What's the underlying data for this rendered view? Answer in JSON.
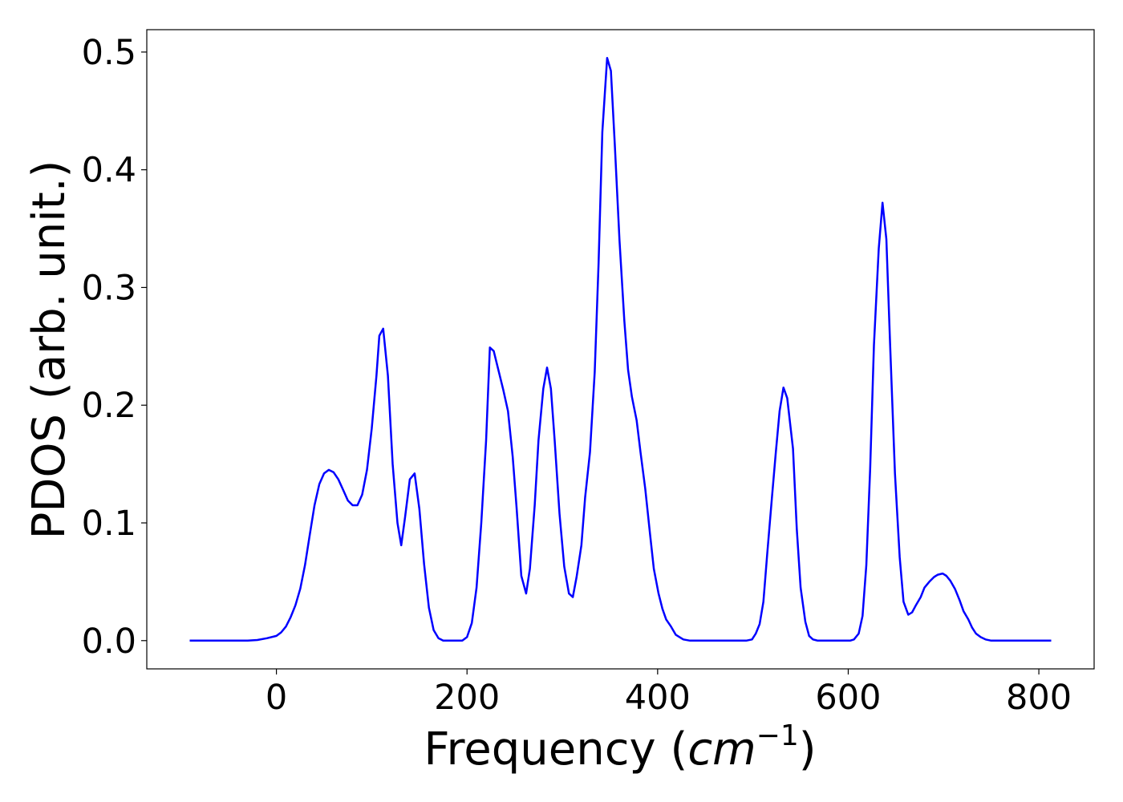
{
  "chart_data": {
    "type": "line",
    "xlabel": {
      "text": "Frequency (",
      "math": "cm",
      "sup": "−1",
      "close": ")"
    },
    "ylabel": "PDOS (arb. unit.)",
    "xlim": [
      -136,
      858
    ],
    "ylim": [
      -0.024,
      0.519
    ],
    "xticks": [
      0,
      200,
      400,
      600,
      800
    ],
    "yticks": [
      {
        "value": 0,
        "label": "0.0"
      },
      {
        "value": 0.1,
        "label": "0.1"
      },
      {
        "value": 0.2,
        "label": "0.2"
      },
      {
        "value": 0.3,
        "label": "0.3"
      },
      {
        "value": 0.4,
        "label": "0.4"
      },
      {
        "value": 0.5,
        "label": "0.5"
      }
    ],
    "grid": false,
    "x": [
      -91,
      -30,
      -20,
      -10,
      0,
      5,
      10,
      15,
      20,
      25,
      30,
      35,
      40,
      45,
      50,
      55,
      60,
      65,
      70,
      75,
      80,
      85,
      90,
      95,
      100,
      105,
      108,
      112,
      117,
      122,
      127,
      131,
      135,
      140,
      145,
      150,
      155,
      160,
      165,
      170,
      175,
      195,
      200,
      205,
      210,
      215,
      220,
      224,
      228,
      238,
      243,
      248,
      252,
      257,
      262,
      266,
      271,
      275,
      280,
      284,
      288,
      292,
      297,
      302,
      307,
      311,
      315,
      320,
      324,
      329,
      334,
      338,
      342,
      347,
      351,
      355,
      360,
      365,
      369,
      373,
      378,
      382,
      387,
      392,
      396,
      401,
      405,
      409,
      414,
      419,
      423,
      427,
      434,
      493,
      499,
      503,
      507,
      511,
      515,
      520,
      524,
      528,
      532,
      536,
      542,
      546,
      550,
      555,
      559,
      563,
      568,
      602,
      606,
      611,
      615,
      619,
      623,
      627,
      632,
      636,
      640,
      644,
      649,
      654,
      658,
      663,
      667,
      671,
      676,
      680,
      685,
      690,
      694,
      699,
      703,
      707,
      712,
      717,
      721,
      726,
      730,
      734,
      739,
      744,
      750,
      813
    ],
    "series": [
      {
        "name": "PDOS",
        "color": "#0000ff",
        "values": [
          0,
          0,
          0.0005,
          0.002,
          0.004,
          0.007,
          0.012,
          0.02,
          0.03,
          0.044,
          0.064,
          0.09,
          0.115,
          0.133,
          0.142,
          0.145,
          0.143,
          0.137,
          0.128,
          0.119,
          0.115,
          0.115,
          0.124,
          0.145,
          0.18,
          0.225,
          0.259,
          0.265,
          0.225,
          0.15,
          0.1,
          0.081,
          0.105,
          0.137,
          0.142,
          0.112,
          0.065,
          0.028,
          0.009,
          0.002,
          0,
          0,
          0.003,
          0.015,
          0.045,
          0.1,
          0.17,
          0.249,
          0.246,
          0.213,
          0.195,
          0.156,
          0.113,
          0.055,
          0.04,
          0.061,
          0.115,
          0.17,
          0.214,
          0.232,
          0.214,
          0.17,
          0.108,
          0.063,
          0.04,
          0.037,
          0.054,
          0.081,
          0.122,
          0.16,
          0.228,
          0.32,
          0.432,
          0.495,
          0.484,
          0.422,
          0.34,
          0.272,
          0.23,
          0.207,
          0.187,
          0.16,
          0.129,
          0.091,
          0.061,
          0.04,
          0.027,
          0.018,
          0.012,
          0.005,
          0.003,
          0.001,
          0,
          0,
          0.001,
          0.006,
          0.014,
          0.033,
          0.074,
          0.122,
          0.16,
          0.195,
          0.215,
          0.206,
          0.163,
          0.095,
          0.045,
          0.016,
          0.004,
          0.001,
          0,
          0,
          0.001,
          0.006,
          0.021,
          0.064,
          0.146,
          0.251,
          0.333,
          0.372,
          0.341,
          0.251,
          0.142,
          0.071,
          0.033,
          0.022,
          0.024,
          0.03,
          0.037,
          0.045,
          0.05,
          0.054,
          0.056,
          0.057,
          0.055,
          0.051,
          0.044,
          0.034,
          0.025,
          0.018,
          0.011,
          0.006,
          0.003,
          0.001,
          0,
          0
        ]
      }
    ]
  }
}
